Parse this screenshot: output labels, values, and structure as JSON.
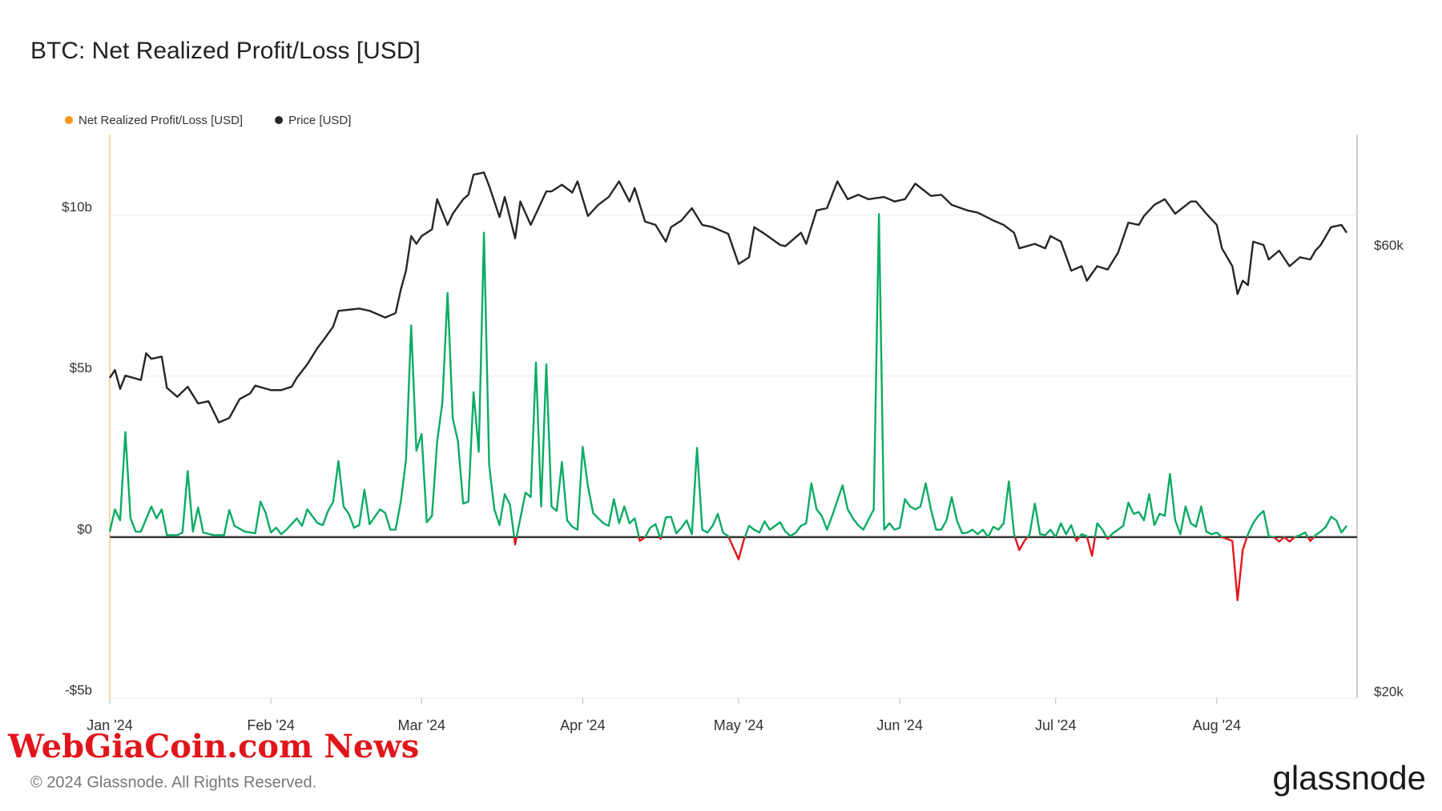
{
  "chart_data": {
    "type": "line",
    "title": "BTC: Net Realized Profit/Loss [USD]",
    "footer": "© 2024 Glassnode. All Rights Reserved.",
    "brand": "glassnode",
    "watermark": "WebGiaCoin.com News",
    "xlim": [
      0,
      240
    ],
    "xticks": [
      {
        "value": 0,
        "label": "Jan '24"
      },
      {
        "value": 31,
        "label": "Feb '24"
      },
      {
        "value": 60,
        "label": "Mar '24"
      },
      {
        "value": 91,
        "label": "Apr '24"
      },
      {
        "value": 121,
        "label": "May '24"
      },
      {
        "value": 152,
        "label": "Jun '24"
      },
      {
        "value": 182,
        "label": "Jul '24"
      },
      {
        "value": 213,
        "label": "Aug '24"
      }
    ],
    "ylim": [
      -5,
      12.5
    ],
    "yticks": [
      {
        "value": -5,
        "label": "-$5b"
      },
      {
        "value": 0,
        "label": "$0"
      },
      {
        "value": 5,
        "label": "$5b"
      },
      {
        "value": 10,
        "label": "$10b"
      }
    ],
    "y2lim": [
      19.5,
      70
    ],
    "y2ticks": [
      {
        "value": 20,
        "label": "$20k"
      },
      {
        "value": 60,
        "label": "$60k"
      }
    ],
    "grid": true,
    "legend": "top-left",
    "series": [
      {
        "name": "Net Realized Profit/Loss [USD]",
        "color": "#f7931a",
        "positive_color": "#0bab64",
        "negative_color": "#e4151b",
        "x": [
          0,
          1,
          2,
          3,
          4,
          5,
          6,
          8,
          9,
          10,
          11,
          13,
          14,
          15,
          16,
          17,
          18,
          20,
          22,
          23,
          24,
          26,
          28,
          29,
          30,
          31,
          32,
          33,
          34,
          36,
          37,
          38,
          40,
          41,
          42,
          43,
          44,
          45,
          46,
          47,
          48,
          49,
          50,
          51,
          52,
          53,
          54,
          55,
          56,
          57,
          58,
          59,
          60,
          61,
          62,
          63,
          64,
          65,
          66,
          67,
          68,
          69,
          70,
          71,
          72,
          73,
          74,
          75,
          76,
          77,
          78,
          79,
          80,
          81,
          82,
          83,
          84,
          85,
          86,
          87,
          88,
          89,
          90,
          91,
          92,
          93,
          94,
          95,
          96,
          97,
          98,
          99,
          100,
          101,
          102,
          103,
          104,
          105,
          106,
          107,
          108,
          109,
          110,
          111,
          112,
          113,
          114,
          115,
          116,
          117,
          118,
          119,
          121,
          122,
          123,
          124,
          125,
          126,
          127,
          129,
          130,
          131,
          132,
          133,
          134,
          135,
          136,
          137,
          138,
          139,
          141,
          142,
          143,
          144,
          145,
          147,
          148,
          149,
          150,
          151,
          152,
          153,
          154,
          155,
          156,
          157,
          158,
          159,
          160,
          161,
          162,
          163,
          164,
          165,
          166,
          167,
          168,
          169,
          170,
          171,
          172,
          173,
          174,
          175,
          176,
          177,
          178,
          179,
          180,
          181,
          182,
          183,
          184,
          185,
          186,
          187,
          188,
          189,
          190,
          191,
          192,
          193,
          194,
          195,
          196,
          197,
          198,
          199,
          200,
          201,
          202,
          203,
          204,
          205,
          206,
          207,
          208,
          209,
          210,
          211,
          212,
          213,
          214,
          215,
          216,
          217,
          218,
          219,
          220,
          221,
          222,
          223,
          224,
          225,
          226,
          227,
          228,
          229,
          230,
          231,
          232,
          233,
          234,
          235,
          236,
          237,
          238
        ],
        "values": [
          0.17,
          0.86,
          0.52,
          3.26,
          0.58,
          0.17,
          0.17,
          0.95,
          0.58,
          0.86,
          0.06,
          0.06,
          0.14,
          2.05,
          0.17,
          0.92,
          0.14,
          0.06,
          0.06,
          0.84,
          0.35,
          0.17,
          0.12,
          1.1,
          0.75,
          0.14,
          0.29,
          0.09,
          0.23,
          0.58,
          0.35,
          0.86,
          0.43,
          0.37,
          0.81,
          1.1,
          2.36,
          0.95,
          0.72,
          0.29,
          0.37,
          1.47,
          0.4,
          0.63,
          0.86,
          0.75,
          0.23,
          0.23,
          1.1,
          2.39,
          6.57,
          2.68,
          3.2,
          0.46,
          0.66,
          2.97,
          4.18,
          7.58,
          3.69,
          2.97,
          1.04,
          1.1,
          4.5,
          2.65,
          9.45,
          2.25,
          0.86,
          0.37,
          1.33,
          1.01,
          -0.23,
          0.58,
          1.38,
          1.24,
          5.42,
          0.95,
          5.36,
          0.95,
          0.81,
          2.33,
          0.52,
          0.32,
          0.23,
          2.8,
          1.59,
          0.75,
          0.58,
          0.43,
          0.35,
          1.18,
          0.43,
          0.95,
          0.43,
          0.58,
          -0.12,
          0,
          0.29,
          0.4,
          -0.06,
          0.61,
          0.63,
          0.12,
          0.29,
          0.52,
          0.09,
          2.77,
          0.23,
          0.14,
          0.35,
          0.72,
          0.14,
          0.03,
          -0.69,
          -0.09,
          0.35,
          0.23,
          0.14,
          0.49,
          0.23,
          0.46,
          0.17,
          0.03,
          0.14,
          0.35,
          0.43,
          1.67,
          0.86,
          0.66,
          0.23,
          0.66,
          1.61,
          0.86,
          0.58,
          0.37,
          0.23,
          0.86,
          10.03,
          0.23,
          0.43,
          0.23,
          0.29,
          1.18,
          0.95,
          0.86,
          0.95,
          1.67,
          0.86,
          0.23,
          0.23,
          0.52,
          1.24,
          0.52,
          0.12,
          0.14,
          0.23,
          0.09,
          0.23,
          0,
          0.32,
          0.23,
          0.43,
          1.73,
          0.09,
          -0.4,
          -0.12,
          0.09,
          1.04,
          0.09,
          0.06,
          0.23,
          0,
          0.43,
          0.09,
          0.37,
          -0.12,
          0.09,
          0.03,
          -0.58,
          0.43,
          0.23,
          -0.06,
          0.12,
          0.23,
          0.35,
          1.07,
          0.72,
          0.78,
          0.52,
          1.33,
          0.37,
          0.72,
          0.66,
          1.96,
          0.52,
          0.09,
          0.95,
          0.43,
          0.32,
          0.95,
          0.17,
          0.09,
          0.14,
          0,
          -0.06,
          -0.12,
          -1.96,
          -0.4,
          0.09,
          0.43,
          0.66,
          0.81,
          0.03,
          0,
          -0.14,
          0,
          -0.14,
          0,
          0.06,
          0.14,
          -0.12,
          0.06,
          0.17,
          0.32,
          0.63,
          0.52,
          0.14,
          0.35
        ]
      },
      {
        "name": "Price [USD]",
        "color": "#262626",
        "axis": "y2",
        "x": [
          0,
          1,
          2,
          3,
          6,
          7,
          8,
          10,
          11,
          13,
          15,
          17,
          19,
          21,
          23,
          25,
          27,
          28,
          31,
          33,
          35,
          36,
          38,
          40,
          41,
          43,
          44,
          46,
          48,
          50,
          53,
          55,
          56,
          57,
          58,
          59,
          60,
          62,
          63,
          65,
          66,
          68,
          69,
          70,
          72,
          73,
          75,
          76,
          78,
          79,
          81,
          84,
          85,
          87,
          89,
          90,
          92,
          94,
          96,
          98,
          100,
          101,
          103,
          105,
          107,
          108,
          110,
          112,
          114,
          116,
          119,
          121,
          123,
          124,
          126,
          129,
          130,
          133,
          134,
          136,
          138,
          140,
          142,
          144,
          146,
          149,
          151,
          153,
          155,
          158,
          160,
          162,
          165,
          167,
          170,
          172,
          174,
          175,
          178,
          180,
          181,
          183,
          185,
          187,
          188,
          190,
          192,
          194,
          196,
          198,
          199,
          201,
          203,
          205,
          208,
          209,
          211,
          213,
          214,
          216,
          217,
          218,
          219,
          220,
          222,
          223,
          225,
          227,
          229,
          231,
          232,
          233,
          235,
          237,
          238
        ],
        "values": [
          48.2,
          48.9,
          47.2,
          48.4,
          48.0,
          50.4,
          49.9,
          50.1,
          47.3,
          46.5,
          47.4,
          45.9,
          46.1,
          44.2,
          44.6,
          46.3,
          46.8,
          47.5,
          47.1,
          47.1,
          47.4,
          48.2,
          49.4,
          50.9,
          51.5,
          52.8,
          54.2,
          54.3,
          54.4,
          54.2,
          53.6,
          54.0,
          56.1,
          57.8,
          60.9,
          60.2,
          60.9,
          61.5,
          64.2,
          61.9,
          62.9,
          64.2,
          64.6,
          66.4,
          66.6,
          65.4,
          62.6,
          64.4,
          60.7,
          64.0,
          61.9,
          64.9,
          64.9,
          65.5,
          64.8,
          65.8,
          62.7,
          63.7,
          64.4,
          65.8,
          64.0,
          65.2,
          62.2,
          61.9,
          60.4,
          61.7,
          62.3,
          63.4,
          61.9,
          61.7,
          61.1,
          58.4,
          59.0,
          61.7,
          61.1,
          60.1,
          60.0,
          61.2,
          60.2,
          63.2,
          63.4,
          65.8,
          64.2,
          64.6,
          64.2,
          64.4,
          64.0,
          64.2,
          65.6,
          64.5,
          64.6,
          63.7,
          63.2,
          63.0,
          62.3,
          61.9,
          61.2,
          59.8,
          60.2,
          59.8,
          60.9,
          60.4,
          57.8,
          58.2,
          56.9,
          58.2,
          57.9,
          59.4,
          62.1,
          61.9,
          62.7,
          63.7,
          64.2,
          62.9,
          64.0,
          64.0,
          62.9,
          61.9,
          59.8,
          58.2,
          55.7,
          56.9,
          56.5,
          60.4,
          60.1,
          58.8,
          59.6,
          58.2,
          59.0,
          58.8,
          59.6,
          60.1,
          61.7,
          61.9,
          61.2
        ]
      }
    ]
  }
}
